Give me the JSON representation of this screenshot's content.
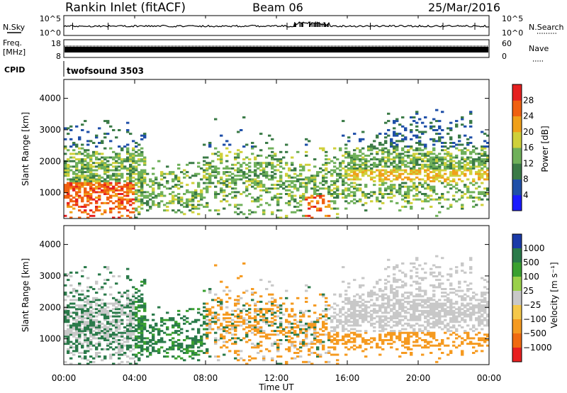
{
  "header": {
    "station": "Rankin Inlet (fitACF)",
    "beam": "Beam 06",
    "date": "25/Mar/2016"
  },
  "noise_panel": {
    "left_label": "N.Sky",
    "right_label": "N.Search",
    "ticks_left": [
      "10^5",
      "10^0"
    ],
    "ticks_right": [
      "10^5",
      "10^0"
    ]
  },
  "freq_panel": {
    "left_label_1": "Freq.",
    "left_label_2": "[MHz]",
    "right_label": "Nave",
    "ticks_left": [
      "18",
      "8"
    ],
    "ticks_right": [
      "60",
      "0"
    ]
  },
  "cpid_panel": {
    "label": "CPID",
    "program": "twofsound 3503"
  },
  "colors": {
    "power_scale": [
      "#1a1aff",
      "#1f4fa8",
      "#3a7a46",
      "#6fb05a",
      "#cfd03a",
      "#f0a01a",
      "#f06010",
      "#e52020"
    ],
    "velocity_scale": [
      "#1a3aa8",
      "#2a7a4a",
      "#3aa030",
      "#9ad04a",
      "#c8c8c8",
      "#f5c84a",
      "#f59a20",
      "#f06a10",
      "#e82020"
    ]
  },
  "chart_data": [
    {
      "type": "heatmap",
      "name": "power",
      "xlabel": "Time UT",
      "ylabel": "Slant Range [km]",
      "x_ticks": [
        "00:00",
        "04:00",
        "08:00",
        "12:00",
        "16:00",
        "20:00",
        "00:00"
      ],
      "y_ticks": [
        1000,
        2000,
        3000,
        4000
      ],
      "xlim": [
        0,
        24
      ],
      "ylim": [
        180,
        4600
      ],
      "colorbar_label": "Power [dB]",
      "colorbar_ticks": [
        "4",
        "8",
        "12",
        "16",
        "20",
        "24",
        "28"
      ]
    },
    {
      "type": "heatmap",
      "name": "velocity",
      "xlabel": "Time UT",
      "ylabel": "Slant Range [km]",
      "x_ticks": [
        "00:00",
        "04:00",
        "08:00",
        "12:00",
        "16:00",
        "20:00",
        "00:00"
      ],
      "y_ticks": [
        1000,
        2000,
        3000,
        4000
      ],
      "xlim": [
        0,
        24
      ],
      "ylim": [
        180,
        4600
      ],
      "colorbar_label": "Velocity [m s⁻¹]",
      "colorbar_ticks": [
        "1000",
        "500",
        "100",
        "25",
        "−25",
        "−100",
        "−500",
        "−1000"
      ]
    }
  ]
}
